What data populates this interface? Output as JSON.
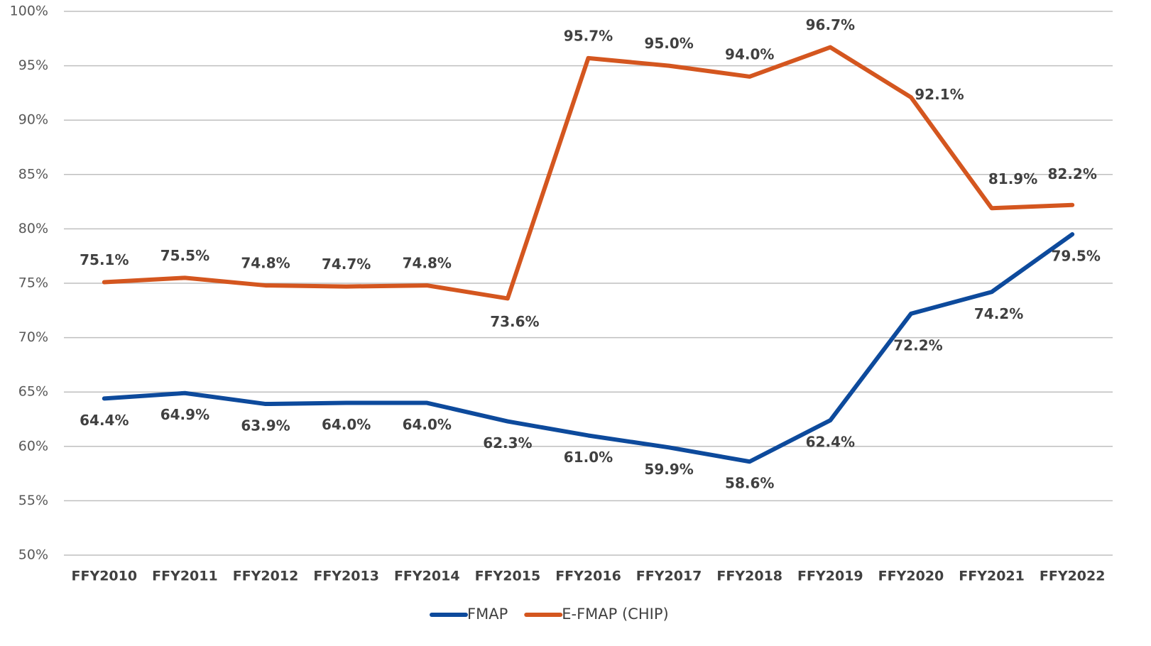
{
  "chart_data": {
    "type": "line",
    "categories": [
      "FFY2010",
      "FFY2011",
      "FFY2012",
      "FFY2013",
      "FFY2014",
      "FFY2015",
      "FFY2016",
      "FFY2017",
      "FFY2018",
      "FFY2019",
      "FFY2020",
      "FFY2021",
      "FFY2022"
    ],
    "series": [
      {
        "name": "FMAP",
        "color": "#0d4a9c",
        "values": [
          64.4,
          64.9,
          63.9,
          64.0,
          64.0,
          62.3,
          61.0,
          59.9,
          58.6,
          62.4,
          72.2,
          74.2,
          79.5
        ],
        "value_labels": [
          "64.4%",
          "64.9%",
          "63.9%",
          "64.0%",
          "64.0%",
          "62.3%",
          "61.0%",
          "59.9%",
          "58.6%",
          "62.4%",
          "72.2%",
          "74.2%",
          "79.5%"
        ]
      },
      {
        "name": "E-FMAP (CHIP)",
        "color": "#d4561f",
        "values": [
          75.1,
          75.5,
          74.8,
          74.7,
          74.8,
          73.6,
          95.7,
          95.0,
          94.0,
          96.7,
          92.1,
          81.9,
          82.2
        ],
        "value_labels": [
          "75.1%",
          "75.5%",
          "74.8%",
          "74.7%",
          "74.8%",
          "73.6%",
          "95.7%",
          "95.0%",
          "94.0%",
          "96.7%",
          "92.1%",
          "81.9%",
          "82.2%"
        ]
      }
    ],
    "ylim": [
      50,
      100
    ],
    "yticks": [
      {
        "value": 50,
        "label": "50%"
      },
      {
        "value": 55,
        "label": "55%"
      },
      {
        "value": 60,
        "label": "60%"
      },
      {
        "value": 65,
        "label": "65%"
      },
      {
        "value": 70,
        "label": "70%"
      },
      {
        "value": 75,
        "label": "75%"
      },
      {
        "value": 80,
        "label": "80%"
      },
      {
        "value": 85,
        "label": "85%"
      },
      {
        "value": 90,
        "label": "90%"
      },
      {
        "value": 95,
        "label": "95%"
      },
      {
        "value": 100,
        "label": "100%"
      }
    ],
    "grid": true,
    "legend": "bottom"
  }
}
